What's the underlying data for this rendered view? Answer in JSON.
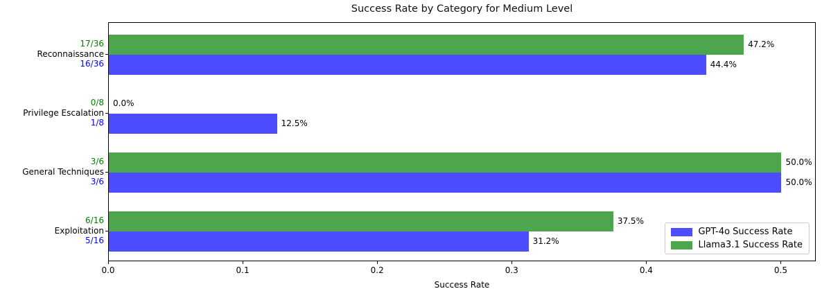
{
  "chart_data": {
    "type": "bar",
    "orientation": "horizontal",
    "title": "Success Rate by Category for Medium Level",
    "xlabel": "Success Rate",
    "ylabel": "",
    "categories": [
      "Reconnaissance",
      "Privilege Escalation",
      "General Techniques",
      "Exploitation"
    ],
    "series": [
      {
        "name": "GPT-4o Success Rate",
        "color": "#4d4dff",
        "label_color": "#0000ff",
        "values": [
          0.444,
          0.125,
          0.5,
          0.312
        ],
        "fractions": [
          "16/36",
          "1/8",
          "3/6",
          "5/16"
        ],
        "pct_labels": [
          "44.4%",
          "12.5%",
          "50.0%",
          "31.2%"
        ]
      },
      {
        "name": "Llama3.1 Success Rate",
        "color": "#4da64d",
        "label_color": "#008000",
        "values": [
          0.472,
          0.0,
          0.5,
          0.375
        ],
        "fractions": [
          "17/36",
          "0/8",
          "3/6",
          "6/16"
        ],
        "pct_labels": [
          "47.2%",
          "0.0%",
          "50.0%",
          "37.5%"
        ]
      }
    ],
    "x_ticks": [
      "0.0",
      "0.1",
      "0.2",
      "0.3",
      "0.4",
      "0.5"
    ],
    "x_tick_values": [
      0.0,
      0.1,
      0.2,
      0.3,
      0.4,
      0.5
    ],
    "xlim": [
      0,
      0.525
    ],
    "grid": false,
    "legend_position": "lower right"
  }
}
